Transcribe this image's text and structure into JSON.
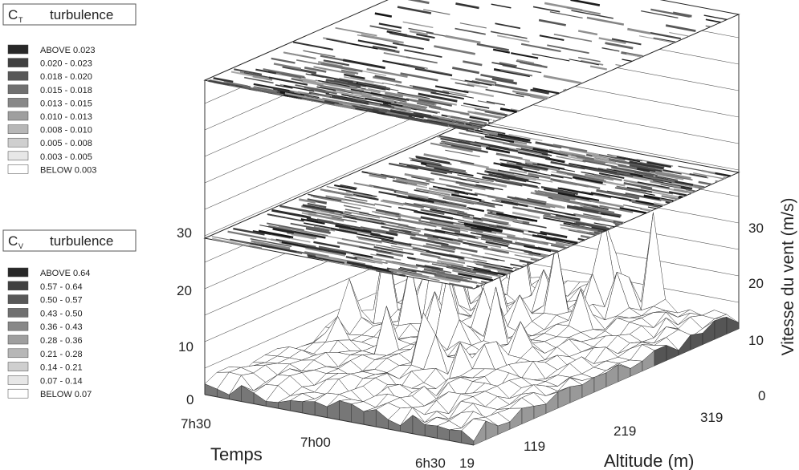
{
  "legends": [
    {
      "symbol": "C",
      "subscript": "T",
      "word": "turbulence",
      "items": [
        "ABOVE  0.023",
        "0.020 - 0.023",
        "0.018 - 0.020",
        "0.015 - 0.018",
        "0.013 - 0.015",
        "0.010 - 0.013",
        "0.008 - 0.010",
        "0.005 - 0.008",
        "0.003 - 0.005",
        "BELOW  0.003"
      ]
    },
    {
      "symbol": "C",
      "subscript": "V",
      "word": "turbulence",
      "items": [
        "ABOVE  0.64",
        "0.57 - 0.64",
        "0.50 - 0.57",
        "0.43 - 0.50",
        "0.36 - 0.43",
        "0.28 - 0.36",
        "0.21 - 0.28",
        "0.14 - 0.21",
        "0.07 - 0.14",
        "BELOW  0.07"
      ]
    }
  ],
  "axes": {
    "left_ticks": [
      "0",
      "10",
      "20",
      "30"
    ],
    "right_ticks": [
      "0",
      "10",
      "20",
      "30"
    ],
    "z_label": "Vitesse du vent (m/s)",
    "time_label": "Temps",
    "time_ticks": [
      "7h30",
      "7h00",
      "6h30"
    ],
    "altitude_label": "Altitude (m)",
    "altitude_ticks": [
      "19",
      "119",
      "219",
      "319"
    ]
  }
}
